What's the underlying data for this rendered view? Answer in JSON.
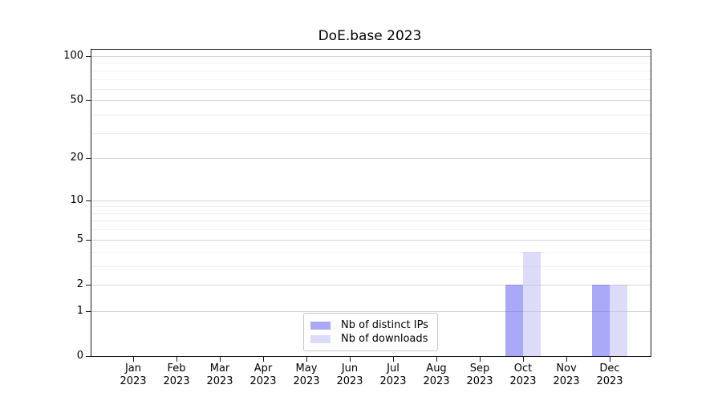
{
  "chart_data": {
    "type": "bar",
    "title": "DoE.base 2023",
    "categories": [
      "Jan",
      "Feb",
      "Mar",
      "Apr",
      "May",
      "Jun",
      "Jul",
      "Aug",
      "Sep",
      "Oct",
      "Nov",
      "Dec"
    ],
    "x_year": "2023",
    "series": [
      {
        "name": "Nb of distinct IPs",
        "color": "#5353f1",
        "alpha": 0.5,
        "values": [
          0,
          0,
          0,
          0,
          0,
          0,
          0,
          0,
          0,
          2,
          0,
          2
        ]
      },
      {
        "name": "Nb of downloads",
        "color": "#b9b9f3",
        "alpha": 0.5,
        "values": [
          0,
          0,
          0,
          0,
          0,
          0,
          0,
          0,
          0,
          4,
          0,
          2
        ]
      }
    ],
    "yscale": "log10(1+x)",
    "yticks": [
      0,
      1,
      2,
      5,
      10,
      20,
      50,
      100
    ],
    "yminor_gridlines": [
      3,
      4,
      6,
      7,
      8,
      9,
      30,
      40,
      60,
      70,
      80,
      90
    ],
    "ylim": [
      0,
      110
    ],
    "grid": true,
    "legend_position": "inside-bottom-center"
  },
  "colors": {
    "grid_major": "#d4d4d4",
    "grid_minor": "#f0f0f0",
    "axis": "#1a1a1a",
    "background": "#ffffff"
  }
}
